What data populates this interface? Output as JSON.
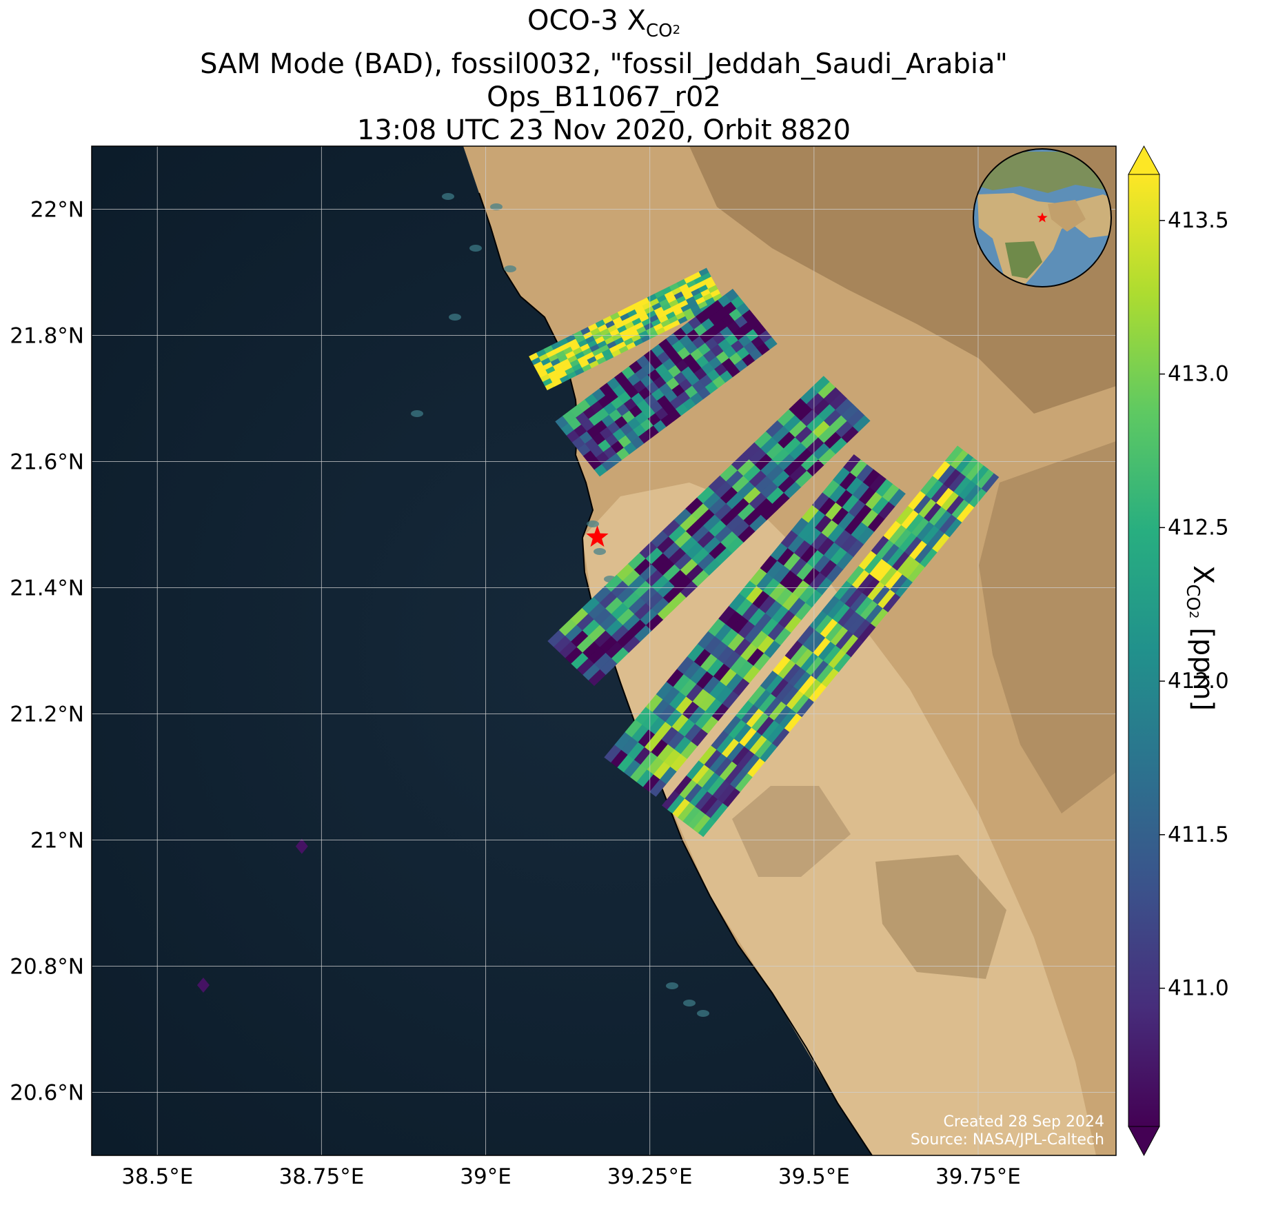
{
  "title": {
    "line1_prefix": "OCO-3 X",
    "line1_sub": "CO",
    "line1_sub2": "2",
    "line2": "SAM Mode (BAD), fossil0032, \"fossil_Jeddah_Saudi_Arabia\"",
    "line3": "Ops_B11067_r02",
    "line4": "13:08 UTC 23 Nov 2020, Orbit 8820"
  },
  "axes": {
    "lat_labels": [
      "22°N",
      "21.8°N",
      "21.6°N",
      "21.4°N",
      "21.2°N",
      "21°N",
      "20.8°N",
      "20.6°N"
    ],
    "lat_values": [
      22.0,
      21.8,
      21.6,
      21.4,
      21.2,
      21.0,
      20.8,
      20.6
    ],
    "lon_labels": [
      "38.5°E",
      "38.75°E",
      "39°E",
      "39.25°E",
      "39.5°E",
      "39.75°E"
    ],
    "lon_values": [
      38.5,
      38.75,
      39.0,
      39.25,
      39.5,
      39.75
    ],
    "lon_range": [
      38.4,
      39.96
    ],
    "lat_range": [
      20.5,
      22.1
    ],
    "grid": true
  },
  "colorbar": {
    "colormap": "viridis",
    "range": [
      410.55,
      413.65
    ],
    "tick_labels": [
      "413.5",
      "413.0",
      "412.5",
      "412.0",
      "411.5",
      "411.0"
    ],
    "tick_values": [
      413.5,
      413.0,
      412.5,
      412.0,
      411.5,
      411.0
    ],
    "label_prefix": "X",
    "label_sub": "CO",
    "label_sub2": "2",
    "label_suffix": " [ppm]",
    "extend": "both"
  },
  "target": {
    "lon": 39.17,
    "lat": 21.48,
    "marker": "red-star"
  },
  "inset_globe": {
    "type": "orthographic",
    "marker": "red-star"
  },
  "credits": {
    "line1": "Created 28 Sep 2024",
    "line2": "Source: NASA/JPL-Caltech"
  },
  "colors": {
    "ocean": "#0e1f2e",
    "land": "#c9a574",
    "grid": "#d0d0d0",
    "target": "#ff0000"
  },
  "chart_data": {
    "type": "heatmap",
    "variable": "XCO2 [ppm]",
    "swaths": [
      {
        "lon_start": 39.08,
        "lat_start": 21.74,
        "lon_end": 39.35,
        "lat_end": 21.88,
        "cross_track": 0.06,
        "mean": 413.1
      },
      {
        "lon_start": 39.14,
        "lat_start": 21.62,
        "lon_end": 39.41,
        "lat_end": 21.83,
        "cross_track": 0.11,
        "mean": 411.3
      },
      {
        "lon_start": 39.13,
        "lat_start": 21.28,
        "lon_end": 39.55,
        "lat_end": 21.7,
        "cross_track": 0.1,
        "mean": 411.6
      },
      {
        "lon_start": 39.22,
        "lat_start": 21.1,
        "lon_end": 39.6,
        "lat_end": 21.58,
        "cross_track": 0.1,
        "mean": 411.8
      },
      {
        "lon_start": 39.3,
        "lat_start": 21.03,
        "lon_end": 39.75,
        "lat_end": 21.6,
        "cross_track": 0.08,
        "mean": 412.3
      }
    ],
    "isolated_points": [
      {
        "lon": 38.72,
        "lat": 20.99,
        "value": 410.7
      },
      {
        "lon": 38.57,
        "lat": 20.77,
        "value": 410.7
      }
    ]
  }
}
